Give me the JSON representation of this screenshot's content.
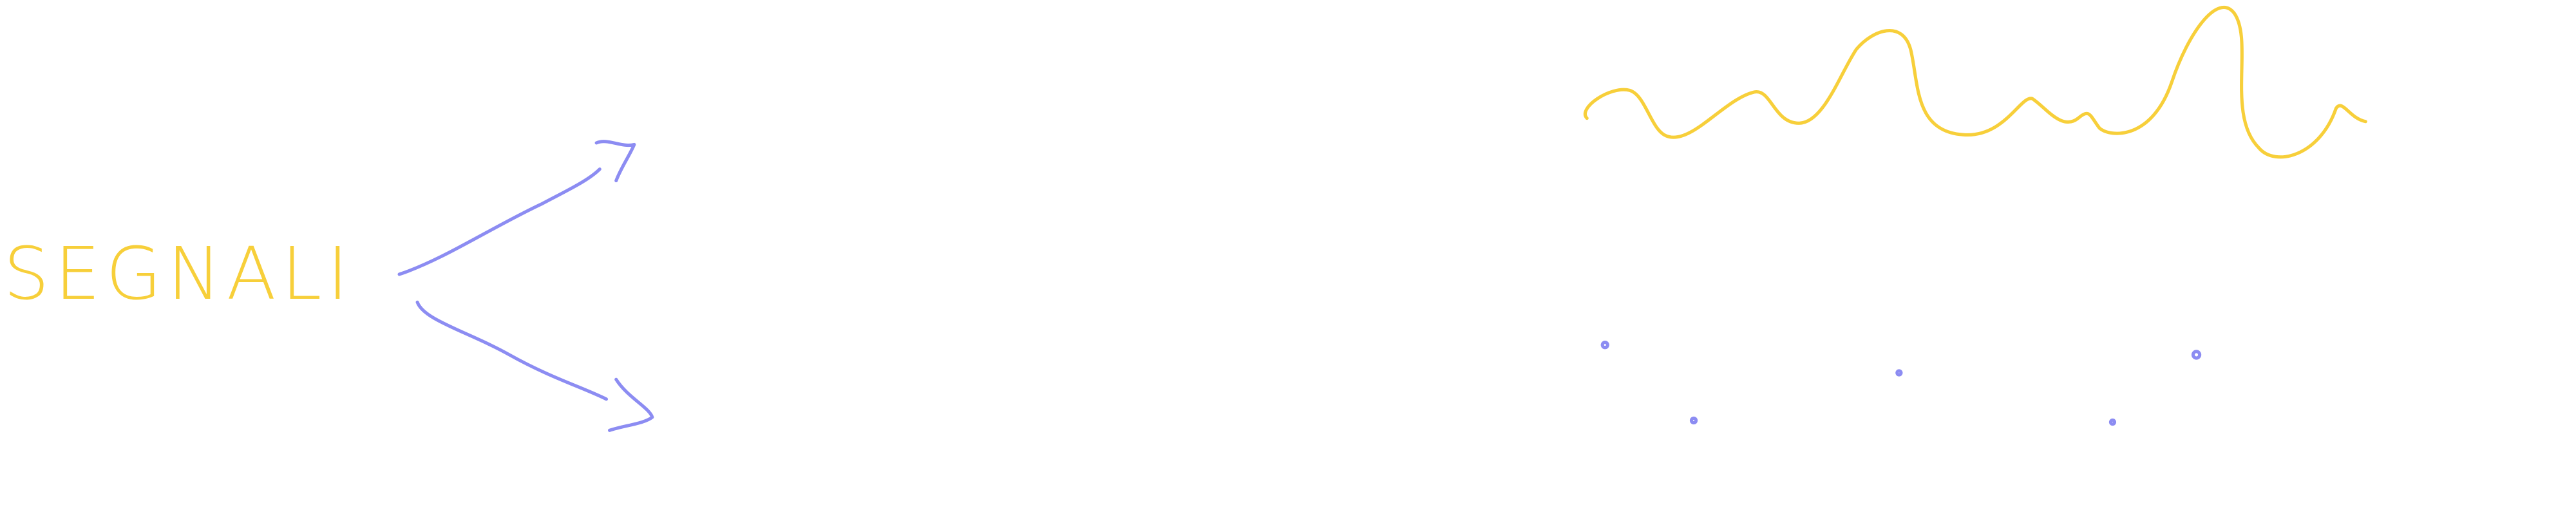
{
  "label": "SEGNALI"
}
